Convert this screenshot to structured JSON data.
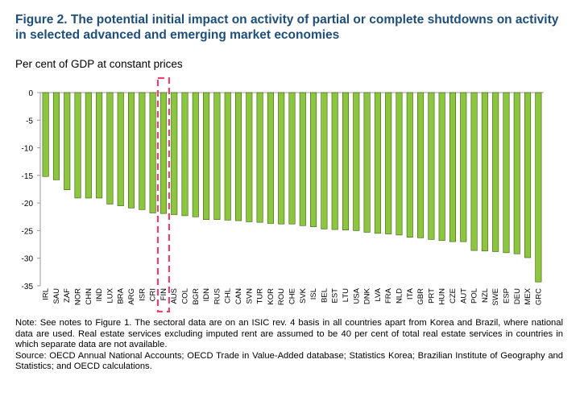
{
  "figure": {
    "title": "Figure 2. The potential initial impact on activity of partial or complete shutdowns on activity in selected advanced and emerging market economies",
    "ylabel": "Per cent of GDP at constant prices"
  },
  "notes": {
    "note": "Note: See notes to Figure 1. The sectoral data are on an ISIC rev. 4 basis in all countries apart from Korea and Brazil, where national data are used. Real estate services excluding imputed rent are assumed to be 40 per cent of total real estate services in countries in which separate data are not available.",
    "source": "Source: OECD Annual National Accounts; OECD Trade in Value-Added database; Statistics Korea; Brazilian Institute of Geography and Statistics; and OECD calculations."
  },
  "chart_data": {
    "type": "bar",
    "categories": [
      "IRL",
      "SAU",
      "ZAF",
      "NOR",
      "CHN",
      "IND",
      "LUX",
      "BRA",
      "ARG",
      "ISR",
      "CRI",
      "FIN",
      "AUS",
      "COL",
      "BGR",
      "IDN",
      "RUS",
      "CHL",
      "CAN",
      "SVN",
      "TUR",
      "KOR",
      "ROU",
      "CHE",
      "SVK",
      "ISL",
      "BEL",
      "EST",
      "LTU",
      "USA",
      "DNK",
      "LVA",
      "FRA",
      "NLD",
      "ITA",
      "GBR",
      "PRT",
      "HUN",
      "CZE",
      "AUT",
      "POL",
      "NZL",
      "SWE",
      "ESP",
      "DEU",
      "MEX",
      "GRC"
    ],
    "values": [
      -15.2,
      -15.8,
      -17.6,
      -19.1,
      -19.1,
      -19.1,
      -20.2,
      -20.5,
      -20.9,
      -21.2,
      -21.8,
      -21.9,
      -22.1,
      -22.3,
      -22.5,
      -23.0,
      -23.0,
      -23.1,
      -23.2,
      -23.4,
      -23.5,
      -23.7,
      -23.8,
      -23.8,
      -24.1,
      -24.3,
      -24.7,
      -24.8,
      -24.9,
      -25.0,
      -25.3,
      -25.5,
      -25.6,
      -25.8,
      -26.2,
      -26.3,
      -26.6,
      -26.8,
      -27.0,
      -27.0,
      -28.6,
      -28.7,
      -28.8,
      -29.0,
      -29.2,
      -29.9,
      -34.3
    ],
    "ylim": [
      -35,
      0
    ],
    "yticks": [
      0,
      -5,
      -10,
      -15,
      -20,
      -25,
      -30,
      -35
    ],
    "grid": false,
    "highlight": "FIN",
    "colors": {
      "bar_fill": "#8cc63f",
      "bar_stroke": "#3c5a14",
      "highlight_box": "#e8436e",
      "axis": "#999999",
      "title": "#1f4e79"
    }
  }
}
